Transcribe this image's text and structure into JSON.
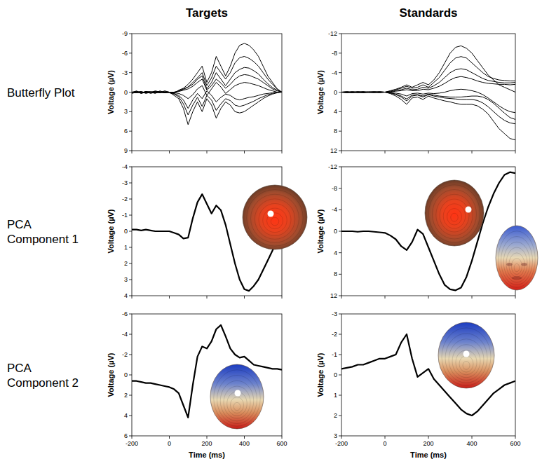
{
  "column_titles": [
    "Targets",
    "Standards"
  ],
  "row_titles": [
    "Butterfly Plot",
    "PCA Component 1",
    "PCA Component 2"
  ],
  "chart_data": [
    {
      "type": "line",
      "color": "#000000",
      "tick_labels": "y",
      "y_label": "Voltage (µV)",
      "x": [
        -200,
        -175,
        -150,
        -125,
        -100,
        -75,
        -50,
        -25,
        0,
        25,
        50,
        75,
        100,
        125,
        150,
        175,
        200,
        225,
        250,
        275,
        300,
        325,
        350,
        375,
        400,
        425,
        450,
        475,
        500,
        525,
        550,
        575,
        600
      ],
      "xlim": [
        -200,
        600
      ],
      "xticks": [
        -200,
        0,
        200,
        400,
        600
      ],
      "ylim": [
        9,
        -9
      ],
      "yticks": [
        -9,
        -6,
        -3,
        0,
        3,
        6,
        9
      ],
      "series": [
        {
          "values": [
            0.1,
            -0.2,
            0.2,
            -0.1,
            0,
            0.2,
            -0.2,
            0.1,
            0,
            0.2,
            -0.3,
            -0.6,
            -1.2,
            -2,
            -3,
            -4,
            -1.5,
            -3,
            -5.5,
            -4,
            -2.5,
            -4,
            -6,
            -7.2,
            -7.5,
            -7.2,
            -6.5,
            -5.5,
            -4,
            -2.5,
            -1.5,
            -0.5,
            0
          ]
        },
        {
          "values": [
            0,
            0.1,
            -0.1,
            0.2,
            0,
            -0.1,
            0.1,
            -0.2,
            0,
            0.1,
            -0.2,
            -0.4,
            -0.8,
            -1.5,
            -2.2,
            -3,
            -1,
            -2.2,
            -4,
            -3,
            -2,
            -3,
            -4.5,
            -5.3,
            -5.5,
            -5.2,
            -4.7,
            -4,
            -3,
            -2,
            -1.2,
            -0.5,
            0
          ]
        },
        {
          "values": [
            0,
            -0.1,
            0.2,
            0,
            0.1,
            -0.2,
            0,
            0.1,
            0,
            0.5,
            1,
            2.5,
            5,
            3,
            1.5,
            3,
            1,
            2,
            4,
            2.5,
            1.5,
            2,
            3,
            3.2,
            3,
            2.5,
            2,
            1.5,
            1,
            0.6,
            0.3,
            0.1,
            0
          ]
        },
        {
          "values": [
            0.2,
            0,
            0.1,
            -0.1,
            0.2,
            0,
            -0.1,
            0,
            0.1,
            0.3,
            0.7,
            1.8,
            3.5,
            2,
            0.8,
            2.2,
            0.5,
            1.2,
            2.8,
            1.8,
            1,
            1.3,
            2,
            2.2,
            2,
            1.7,
            1.4,
            1,
            0.7,
            0.4,
            0.2,
            0,
            0
          ]
        },
        {
          "values": [
            0,
            0,
            -0.1,
            0.1,
            0,
            0.1,
            0,
            -0.1,
            0,
            0,
            -0.2,
            -0.5,
            -0.8,
            -1.2,
            -2,
            -2.5,
            -0.5,
            -1.5,
            -3,
            -2,
            -1,
            -2,
            -3,
            -3.5,
            -3.8,
            -3.7,
            -3.3,
            -2.8,
            -2,
            -1.3,
            -0.7,
            -0.3,
            0
          ]
        },
        {
          "values": [
            0,
            0.1,
            0,
            0,
            -0.1,
            0.1,
            0,
            0,
            0,
            0.1,
            0.2,
            0.5,
            1,
            0.4,
            -0.5,
            -1,
            0.5,
            -0.5,
            -1.5,
            -0.8,
            0.2,
            -0.4,
            -1,
            -1.3,
            -1.5,
            -1.4,
            -1.2,
            -1,
            -0.7,
            -0.4,
            -0.2,
            0,
            0
          ]
        },
        {
          "values": [
            0,
            0,
            0.1,
            -0.1,
            0,
            0,
            0.1,
            0,
            0,
            0.2,
            0.5,
            1.2,
            2.5,
            1.2,
            0.2,
            1,
            -0.2,
            0.5,
            1.5,
            0.8,
            0.3,
            0.5,
            1,
            1.2,
            1,
            0.8,
            0.7,
            0.5,
            0.3,
            0.2,
            0.1,
            0,
            0
          ]
        },
        {
          "values": [
            0,
            -0.1,
            0,
            0.1,
            0,
            -0.1,
            0,
            0.1,
            0,
            0,
            -0.1,
            -0.3,
            -0.5,
            -0.9,
            -1.5,
            -2,
            -0.3,
            -1,
            -2,
            -1.4,
            -0.6,
            -1.2,
            -2,
            -2.5,
            -2.7,
            -2.6,
            -2.3,
            -2,
            -1.5,
            -1,
            -0.5,
            -0.2,
            0
          ]
        }
      ]
    },
    {
      "type": "line",
      "color": "#000000",
      "tick_labels": "y",
      "y_label": "Voltage (µV)",
      "x": [
        -200,
        -175,
        -150,
        -125,
        -100,
        -75,
        -50,
        -25,
        0,
        25,
        50,
        75,
        100,
        125,
        150,
        175,
        200,
        225,
        250,
        275,
        300,
        325,
        350,
        375,
        400,
        425,
        450,
        475,
        500,
        525,
        550,
        575,
        600
      ],
      "xlim": [
        -200,
        600
      ],
      "xticks": [
        -200,
        0,
        200,
        400,
        600
      ],
      "ylim": [
        12,
        -12
      ],
      "yticks": [
        -12,
        -8,
        -4,
        0,
        4,
        8,
        12
      ],
      "series": [
        {
          "values": [
            0,
            0.1,
            -0.1,
            0,
            0.1,
            0,
            -0.1,
            0,
            0,
            -0.3,
            -0.6,
            -1,
            -1.5,
            -1,
            -1.5,
            -2,
            -1.5,
            -2.5,
            -4,
            -6,
            -8,
            -9.2,
            -9.5,
            -9,
            -8,
            -6.5,
            -5,
            -3.5,
            -2.5,
            -1.5,
            -1,
            -0.5,
            0
          ]
        },
        {
          "values": [
            0,
            -0.1,
            0.1,
            0,
            -0.1,
            0.1,
            0,
            -0.1,
            0,
            -0.2,
            -0.5,
            -0.8,
            -1.2,
            -0.8,
            -1,
            -1.5,
            -1,
            -2,
            -3,
            -4.5,
            -6,
            -7,
            -7.3,
            -7,
            -6,
            -5,
            -4,
            -3.2,
            -2.8,
            -2.5,
            -2.4,
            -2.3,
            -2.3
          ]
        },
        {
          "values": [
            0,
            0.1,
            0,
            -0.1,
            0.1,
            0,
            0.1,
            -0.1,
            0,
            0.3,
            0.8,
            1.5,
            2.5,
            1.2,
            1,
            1.5,
            0.8,
            1.2,
            1.5,
            1.8,
            2,
            2.3,
            2.5,
            2.5,
            2.5,
            2.8,
            3.5,
            4.5,
            6,
            7.5,
            8.5,
            9.5,
            9.8
          ]
        },
        {
          "values": [
            0,
            0,
            0.1,
            0,
            -0.1,
            0,
            0,
            0.1,
            0,
            0.2,
            0.5,
            1,
            1.8,
            0.8,
            0.6,
            1,
            0.5,
            0.8,
            1,
            1.2,
            1.3,
            1.4,
            1.5,
            1.5,
            1.5,
            1.7,
            2.2,
            3,
            4,
            5,
            5.8,
            6.3,
            6.5
          ]
        },
        {
          "values": [
            0,
            -0.1,
            0,
            0.1,
            0,
            -0.1,
            0,
            0,
            0,
            -0.1,
            -0.3,
            -0.5,
            -0.8,
            -0.5,
            -0.6,
            -1,
            -0.8,
            -1.3,
            -2,
            -3,
            -4,
            -4.6,
            -4.8,
            -4.6,
            -4,
            -3.4,
            -2.8,
            -2.4,
            -2.2,
            -2,
            -1.9,
            -1.9,
            -2
          ]
        },
        {
          "values": [
            0,
            0.1,
            0,
            0,
            0.1,
            0,
            -0.1,
            0,
            0,
            0.1,
            0.2,
            0.4,
            0.8,
            0.3,
            0.2,
            0.4,
            0.2,
            0.3,
            0.2,
            0,
            -0.3,
            -0.5,
            -0.6,
            -0.5,
            -0.3,
            0,
            0.5,
            1.2,
            2,
            2.8,
            3.5,
            4,
            4.2
          ]
        },
        {
          "values": [
            0,
            0,
            0.1,
            -0.1,
            0,
            0,
            0,
            0.1,
            0,
            0,
            -0.2,
            -0.3,
            -0.5,
            -0.3,
            -0.3,
            -0.6,
            -0.5,
            -0.8,
            -1.2,
            -1.8,
            -2.5,
            -3,
            -3.2,
            -3,
            -2.7,
            -2.3,
            -2,
            -1.8,
            -1.7,
            -1.6,
            -1.6,
            -1.5,
            -1.6
          ]
        },
        {
          "values": [
            0,
            0,
            -0.1,
            0.1,
            0,
            0,
            0.1,
            0,
            0,
            0.1,
            0.4,
            0.8,
            1.4,
            0.6,
            0.5,
            0.8,
            0.4,
            0.6,
            0.8,
            0.9,
            1,
            1,
            1,
            0.9,
            0.8,
            0.8,
            1,
            1.5,
            2.3,
            3.3,
            4.3,
            5.2,
            5.6
          ]
        }
      ]
    },
    {
      "type": "line",
      "color": "#000000",
      "tick_labels": "y",
      "y_label": "Voltage (µV)",
      "x": [
        -200,
        -175,
        -150,
        -125,
        -100,
        -75,
        -50,
        -25,
        0,
        25,
        50,
        75,
        100,
        125,
        150,
        175,
        200,
        225,
        250,
        275,
        300,
        325,
        350,
        375,
        400,
        425,
        450,
        475,
        500,
        525,
        550,
        575,
        600
      ],
      "xlim": [
        -200,
        600
      ],
      "xticks": [
        -200,
        0,
        200,
        400,
        600
      ],
      "ylim": [
        4,
        -4
      ],
      "yticks": [
        -4,
        -3,
        -2,
        -1,
        0,
        1,
        2,
        3,
        4
      ],
      "series": [
        {
          "values": [
            -0.1,
            -0.1,
            -0.05,
            -0.1,
            -0.05,
            0,
            0,
            0,
            0,
            0.1,
            0.2,
            0.45,
            0.4,
            -0.8,
            -1.8,
            -2.3,
            -1.7,
            -1.1,
            -1.6,
            -1.3,
            -0.4,
            0.8,
            2,
            3,
            3.6,
            3.7,
            3.4,
            3,
            2.4,
            1.8,
            1.2,
            0.6,
            0
          ]
        }
      ]
    },
    {
      "type": "line",
      "color": "#000000",
      "tick_labels": "y",
      "y_label": "Voltage (µV)",
      "x": [
        -200,
        -175,
        -150,
        -125,
        -100,
        -75,
        -50,
        -25,
        0,
        25,
        50,
        75,
        100,
        125,
        150,
        175,
        200,
        225,
        250,
        275,
        300,
        325,
        350,
        375,
        400,
        425,
        450,
        475,
        500,
        525,
        550,
        575,
        600
      ],
      "xlim": [
        -200,
        600
      ],
      "xticks": [
        -200,
        0,
        200,
        400,
        600
      ],
      "ylim": [
        12,
        -12
      ],
      "yticks": [
        -12,
        -8,
        -4,
        0,
        4,
        8,
        12
      ],
      "series": [
        {
          "values": [
            0,
            0,
            0,
            0.1,
            0,
            0,
            0.1,
            0.2,
            0.3,
            0.8,
            1.5,
            2.8,
            3.5,
            2,
            -0.3,
            0.5,
            3,
            5.5,
            8,
            10,
            10.8,
            11,
            10.5,
            8.5,
            5.5,
            2,
            -1.5,
            -4.5,
            -7,
            -9,
            -10.5,
            -11,
            -10.8
          ]
        }
      ]
    },
    {
      "type": "line",
      "color": "#000000",
      "y_label": "Voltage (µV)",
      "x_label": "Time (ms)",
      "x": [
        -200,
        -175,
        -150,
        -125,
        -100,
        -75,
        -50,
        -25,
        0,
        25,
        50,
        75,
        100,
        125,
        150,
        175,
        200,
        225,
        250,
        275,
        300,
        325,
        350,
        375,
        400,
        425,
        450,
        475,
        500,
        525,
        550,
        575,
        600
      ],
      "xlim": [
        -200,
        600
      ],
      "xticks": [
        -200,
        0,
        200,
        400,
        600
      ],
      "ylim": [
        6,
        -6
      ],
      "yticks": [
        -6,
        -4,
        -2,
        0,
        2,
        4,
        6
      ],
      "series": [
        {
          "values": [
            0.6,
            0.6,
            0.7,
            0.8,
            0.8,
            0.9,
            1,
            1.1,
            1.2,
            1.4,
            1.8,
            3,
            4.2,
            1,
            -1.8,
            -2.8,
            -2.6,
            -3.3,
            -4.5,
            -4.9,
            -3.8,
            -2.6,
            -2,
            -1.7,
            -1.8,
            -1.4,
            -1,
            -0.9,
            -0.8,
            -0.7,
            -0.6,
            -0.6,
            -0.5
          ]
        }
      ]
    },
    {
      "type": "line",
      "color": "#000000",
      "y_label": "Voltage (µV)",
      "x_label": "Time (ms)",
      "x": [
        -200,
        -175,
        -150,
        -125,
        -100,
        -75,
        -50,
        -25,
        0,
        25,
        50,
        75,
        100,
        125,
        150,
        175,
        200,
        225,
        250,
        275,
        300,
        325,
        350,
        375,
        400,
        425,
        450,
        475,
        500,
        525,
        550,
        575,
        600
      ],
      "xlim": [
        -200,
        600
      ],
      "xticks": [
        -200,
        0,
        200,
        400,
        600
      ],
      "ylim": [
        3,
        -3
      ],
      "yticks": [
        -3,
        -2,
        -1,
        0,
        1,
        2,
        3
      ],
      "series": [
        {
          "values": [
            -0.3,
            -0.35,
            -0.4,
            -0.5,
            -0.5,
            -0.6,
            -0.7,
            -0.8,
            -0.8,
            -0.9,
            -1,
            -1.6,
            -2,
            -0.8,
            0.1,
            -0.1,
            -0.3,
            0.2,
            0.5,
            0.8,
            1.1,
            1.4,
            1.7,
            1.9,
            2,
            1.8,
            1.5,
            1.2,
            0.9,
            0.7,
            0.5,
            0.4,
            0.3
          ]
        }
      ]
    }
  ]
}
